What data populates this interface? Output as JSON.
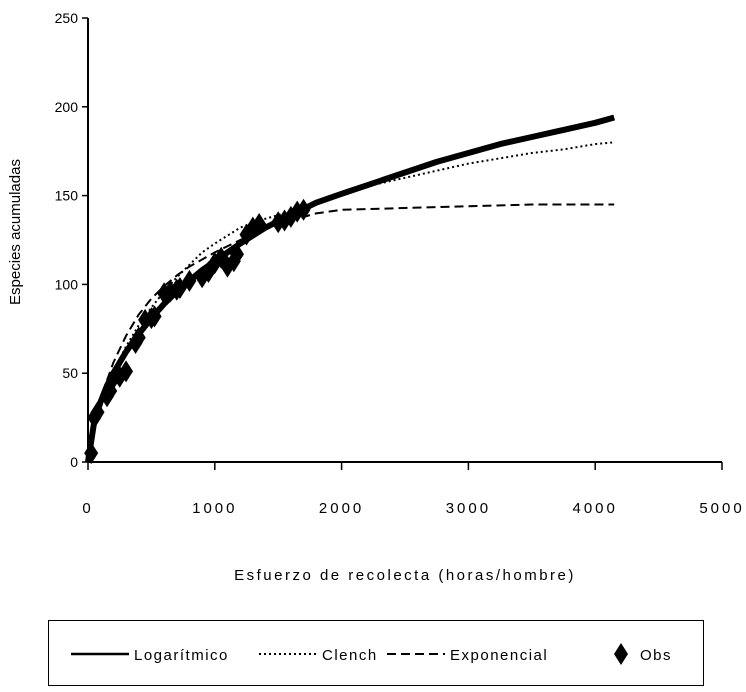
{
  "chart_data": {
    "type": "line",
    "xlabel": "Esfuerzo de recolecta (horas/hombre)",
    "ylabel": "Especies acumuladas",
    "xlim": [
      0,
      5000
    ],
    "ylim": [
      0,
      250
    ],
    "x_ticks": [
      "0",
      "1000",
      "2000",
      "3000",
      "4000",
      "5000"
    ],
    "y_ticks": [
      "0",
      "50",
      "100",
      "150",
      "200",
      "250"
    ],
    "grid": false,
    "legend_position": "bottom",
    "series": [
      {
        "name": "Logarítmico",
        "style": "solid",
        "color": "#000000",
        "x": [
          0,
          50,
          100,
          150,
          200,
          300,
          400,
          500,
          600,
          700,
          800,
          900,
          1000,
          1200,
          1400,
          1600,
          1800,
          2000,
          2250,
          2500,
          2750,
          3000,
          3250,
          3500,
          3750,
          4000,
          4150
        ],
        "y": [
          0,
          23,
          34,
          43,
          50,
          62,
          72,
          81,
          89,
          96,
          102,
          108,
          113,
          123,
          132,
          139,
          146,
          151,
          157,
          163,
          169,
          174,
          179,
          183,
          187,
          191,
          194
        ]
      },
      {
        "name": "Clench",
        "style": "dotted",
        "color": "#000000",
        "x": [
          0,
          50,
          100,
          200,
          300,
          400,
          500,
          600,
          700,
          800,
          900,
          1000,
          1200,
          1400,
          1600,
          1800,
          2000,
          2250,
          2500,
          2750,
          3000,
          3250,
          3500,
          3750,
          4000,
          4150
        ],
        "y": [
          0,
          20,
          33,
          51,
          65,
          77,
          87,
          96,
          104,
          111,
          118,
          123,
          132,
          137,
          141,
          146,
          151,
          156,
          160,
          164,
          168,
          171,
          174,
          176,
          179,
          180
        ]
      },
      {
        "name": "Exponencial",
        "style": "dashed",
        "color": "#000000",
        "x": [
          0,
          50,
          100,
          200,
          300,
          400,
          500,
          600,
          700,
          800,
          900,
          1000,
          1200,
          1400,
          1600,
          1800,
          2000,
          2500,
          3000,
          3500,
          4000,
          4150
        ],
        "y": [
          0,
          21,
          36,
          56,
          71,
          83,
          92,
          99,
          105,
          110,
          114,
          118,
          125,
          131,
          136,
          140,
          142,
          143,
          144,
          145,
          145,
          145
        ]
      },
      {
        "name": "Obs",
        "style": "markers",
        "marker": "diamond",
        "color": "#000000",
        "x": [
          25,
          50,
          75,
          150,
          175,
          200,
          250,
          300,
          375,
          400,
          450,
          500,
          525,
          600,
          650,
          700,
          725,
          800,
          900,
          950,
          1000,
          1050,
          1100,
          1150,
          1175,
          1250,
          1300,
          1350,
          1500,
          1550,
          1600,
          1650,
          1700
        ],
        "y": [
          5,
          25,
          28,
          37,
          40,
          47,
          48,
          51,
          67,
          70,
          80,
          81,
          82,
          95,
          96,
          97,
          98,
          102,
          104,
          107,
          112,
          115,
          110,
          113,
          117,
          128,
          132,
          134,
          135,
          136,
          138,
          141,
          142
        ]
      }
    ]
  }
}
